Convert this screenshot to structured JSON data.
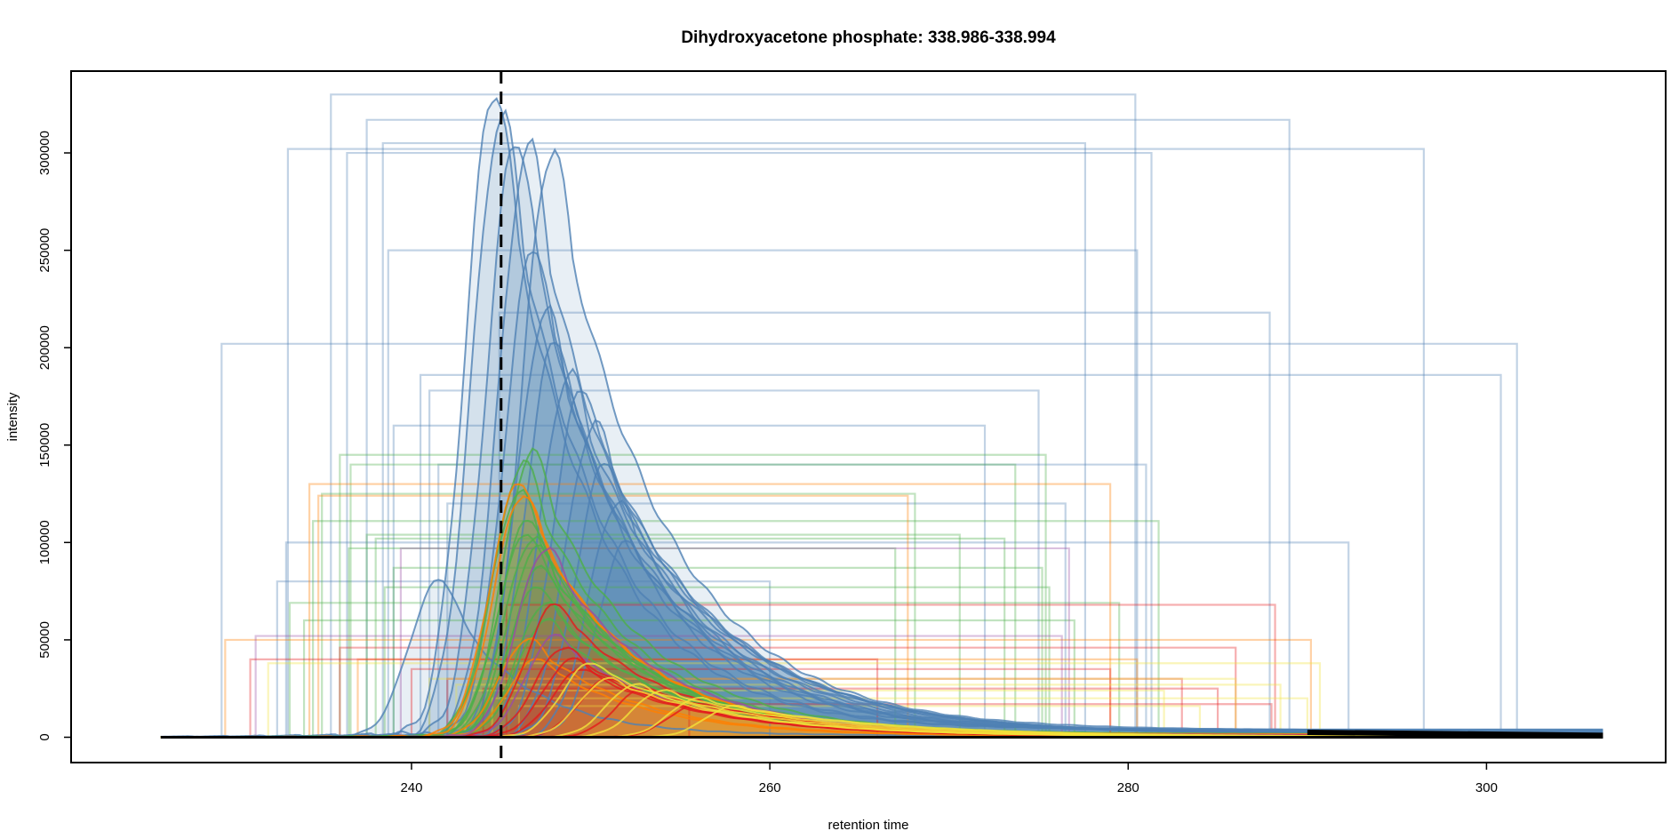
{
  "chart_data": {
    "type": "line",
    "title": "Dihydroxyacetone phosphate: 338.986-338.994",
    "xlabel": "retention time",
    "ylabel": "intensity",
    "xlim": [
      221,
      310
    ],
    "ylim": [
      -13000,
      342000
    ],
    "x_ticks": [
      {
        "value": 240,
        "label": "240"
      },
      {
        "value": 260,
        "label": "260"
      },
      {
        "value": 280,
        "label": "280"
      },
      {
        "value": 300,
        "label": "300"
      }
    ],
    "y_ticks": [
      {
        "value": 0,
        "label": "0"
      },
      {
        "value": 50000,
        "label": "50000"
      },
      {
        "value": 100000,
        "label": "100000"
      },
      {
        "value": 150000,
        "label": "150000"
      },
      {
        "value": 200000,
        "label": "200000"
      },
      {
        "value": 250000,
        "label": "250000"
      },
      {
        "value": 300000,
        "label": "300000"
      }
    ],
    "reference_line": {
      "x": 245,
      "style": "dashed"
    },
    "grid": false,
    "legend": "none",
    "colors": {
      "blue": "#4f81b4",
      "green": "#4daf4a",
      "orange": "#ff7f00",
      "red": "#e41a1c",
      "purple": "#984ea3",
      "yellow": "#f2e23a",
      "baseline": "#000000"
    },
    "series": [
      {
        "color": "blue",
        "peak_rt": 244.6,
        "apex": 330000,
        "rt_start": 235.5,
        "rt_end": 280.4
      },
      {
        "color": "blue",
        "peak_rt": 245.0,
        "apex": 317000,
        "rt_start": 237.5,
        "rt_end": 289.0
      },
      {
        "color": "blue",
        "peak_rt": 245.8,
        "apex": 305000,
        "rt_start": 238.4,
        "rt_end": 277.6
      },
      {
        "color": "blue",
        "peak_rt": 246.5,
        "apex": 302000,
        "rt_start": 233.1,
        "rt_end": 296.5
      },
      {
        "color": "blue",
        "peak_rt": 247.8,
        "apex": 300000,
        "rt_start": 236.4,
        "rt_end": 281.3
      },
      {
        "color": "blue",
        "peak_rt": 246.8,
        "apex": 250000,
        "rt_start": 238.7,
        "rt_end": 280.5
      },
      {
        "color": "blue",
        "peak_rt": 247.5,
        "apex": 218000,
        "rt_start": 244.9,
        "rt_end": 287.9
      },
      {
        "color": "blue",
        "peak_rt": 248.0,
        "apex": 202000,
        "rt_start": 229.4,
        "rt_end": 301.7
      },
      {
        "color": "blue",
        "peak_rt": 248.8,
        "apex": 186000,
        "rt_start": 240.5,
        "rt_end": 300.8
      },
      {
        "color": "blue",
        "peak_rt": 249.5,
        "apex": 178000,
        "rt_start": 241.0,
        "rt_end": 275.0
      },
      {
        "color": "blue",
        "peak_rt": 250.2,
        "apex": 160000,
        "rt_start": 239.0,
        "rt_end": 272.0
      },
      {
        "color": "blue",
        "peak_rt": 250.8,
        "apex": 140000,
        "rt_start": 241.5,
        "rt_end": 281.0
      },
      {
        "color": "blue",
        "peak_rt": 251.5,
        "apex": 120000,
        "rt_start": 242.0,
        "rt_end": 276.5
      },
      {
        "color": "blue",
        "peak_rt": 252.0,
        "apex": 100000,
        "rt_start": 233.0,
        "rt_end": 292.3
      },
      {
        "color": "blue",
        "peak_rt": 241.5,
        "apex": 80000,
        "rt_start": 232.5,
        "rt_end": 260.0
      },
      {
        "color": "green",
        "peak_rt": 246.7,
        "apex": 145000,
        "rt_start": 236.0,
        "rt_end": 275.4
      },
      {
        "color": "green",
        "peak_rt": 246.2,
        "apex": 140000,
        "rt_start": 236.6,
        "rt_end": 273.7
      },
      {
        "color": "green",
        "peak_rt": 246.0,
        "apex": 125000,
        "rt_start": 235.0,
        "rt_end": 268.1
      },
      {
        "color": "green",
        "peak_rt": 246.5,
        "apex": 111000,
        "rt_start": 234.5,
        "rt_end": 281.7
      },
      {
        "color": "green",
        "peak_rt": 246.4,
        "apex": 104000,
        "rt_start": 237.5,
        "rt_end": 270.6
      },
      {
        "color": "green",
        "peak_rt": 246.8,
        "apex": 102000,
        "rt_start": 238.0,
        "rt_end": 273.1
      },
      {
        "color": "green",
        "peak_rt": 247.0,
        "apex": 97000,
        "rt_start": 236.5,
        "rt_end": 267.0
      },
      {
        "color": "green",
        "peak_rt": 247.2,
        "apex": 87000,
        "rt_start": 239.0,
        "rt_end": 275.2
      },
      {
        "color": "green",
        "peak_rt": 247.0,
        "apex": 77000,
        "rt_start": 238.5,
        "rt_end": 275.6
      },
      {
        "color": "green",
        "peak_rt": 247.5,
        "apex": 69000,
        "rt_start": 233.2,
        "rt_end": 279.5
      },
      {
        "color": "green",
        "peak_rt": 247.5,
        "apex": 60000,
        "rt_start": 234.0,
        "rt_end": 277.0
      },
      {
        "color": "orange",
        "peak_rt": 246.0,
        "apex": 130000,
        "rt_start": 234.3,
        "rt_end": 279.0
      },
      {
        "color": "orange",
        "peak_rt": 246.2,
        "apex": 124000,
        "rt_start": 234.8,
        "rt_end": 267.7
      },
      {
        "color": "orange",
        "peak_rt": 246.5,
        "apex": 50000,
        "rt_start": 229.6,
        "rt_end": 290.2
      },
      {
        "color": "orange",
        "peak_rt": 247.0,
        "apex": 40000,
        "rt_start": 237.0,
        "rt_end": 280.5
      },
      {
        "color": "purple",
        "peak_rt": 247.5,
        "apex": 97000,
        "rt_start": 239.4,
        "rt_end": 276.7
      },
      {
        "color": "purple",
        "peak_rt": 248.0,
        "apex": 52000,
        "rt_start": 231.3,
        "rt_end": 276.3
      },
      {
        "color": "red",
        "peak_rt": 248.0,
        "apex": 68000,
        "rt_start": 245.3,
        "rt_end": 288.2
      },
      {
        "color": "red",
        "peak_rt": 248.5,
        "apex": 46000,
        "rt_start": 236.0,
        "rt_end": 286.0
      },
      {
        "color": "red",
        "peak_rt": 249.0,
        "apex": 40000,
        "rt_start": 231.0,
        "rt_end": 266.0
      },
      {
        "color": "red",
        "peak_rt": 249.5,
        "apex": 35000,
        "rt_start": 240.0,
        "rt_end": 279.0
      },
      {
        "color": "red",
        "peak_rt": 251.0,
        "apex": 30000,
        "rt_start": 242.0,
        "rt_end": 283.0
      },
      {
        "color": "red",
        "peak_rt": 253.0,
        "apex": 25000,
        "rt_start": 244.0,
        "rt_end": 285.0
      },
      {
        "color": "red",
        "peak_rt": 256.0,
        "apex": 17000,
        "rt_start": 255.5,
        "rt_end": 288.0
      },
      {
        "color": "yellow",
        "peak_rt": 250.0,
        "apex": 38000,
        "rt_start": 232.0,
        "rt_end": 290.7
      },
      {
        "color": "yellow",
        "peak_rt": 251.0,
        "apex": 30000,
        "rt_start": 241.0,
        "rt_end": 286.0
      },
      {
        "color": "yellow",
        "peak_rt": 252.5,
        "apex": 27000,
        "rt_start": 242.5,
        "rt_end": 288.5
      },
      {
        "color": "yellow",
        "peak_rt": 254.0,
        "apex": 24000,
        "rt_start": 243.0,
        "rt_end": 282.0
      },
      {
        "color": "yellow",
        "peak_rt": 256.0,
        "apex": 20000,
        "rt_start": 244.5,
        "rt_end": 290.0
      },
      {
        "color": "yellow",
        "peak_rt": 258.0,
        "apex": 16000,
        "rt_start": 246.0,
        "rt_end": 284.0
      }
    ]
  }
}
